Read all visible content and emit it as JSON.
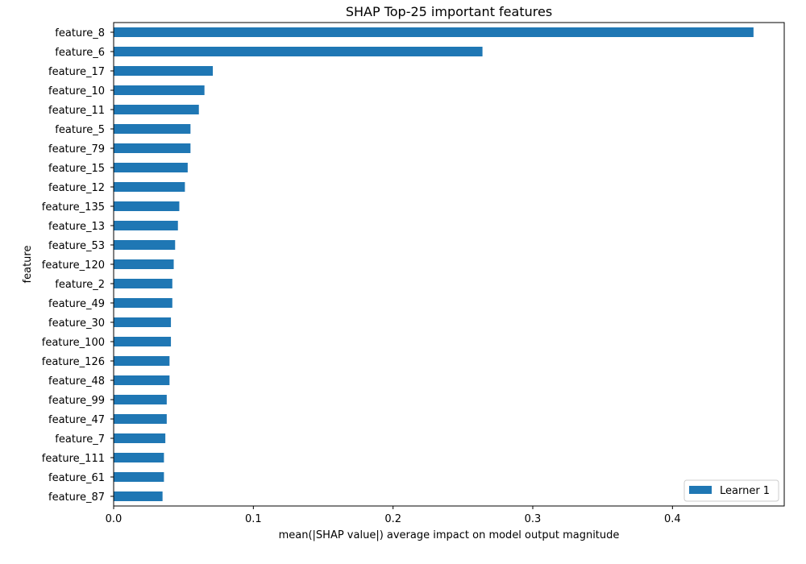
{
  "chart_data": {
    "type": "bar",
    "orientation": "horizontal",
    "title": "SHAP Top-25 important features",
    "xlabel": "mean(|SHAP value|) average impact on model output magnitude",
    "ylabel": "feature",
    "xlim": [
      0,
      0.48
    ],
    "xticks": [
      0.0,
      0.1,
      0.2,
      0.3,
      0.4
    ],
    "xtick_labels": [
      "0.0",
      "0.1",
      "0.2",
      "0.3",
      "0.4"
    ],
    "grid": false,
    "legend_position": "bottom-right",
    "categories": [
      "feature_8",
      "feature_6",
      "feature_17",
      "feature_10",
      "feature_11",
      "feature_5",
      "feature_79",
      "feature_15",
      "feature_12",
      "feature_135",
      "feature_13",
      "feature_53",
      "feature_120",
      "feature_2",
      "feature_49",
      "feature_30",
      "feature_100",
      "feature_126",
      "feature_48",
      "feature_99",
      "feature_47",
      "feature_7",
      "feature_111",
      "feature_61",
      "feature_87"
    ],
    "series": [
      {
        "name": "Learner 1",
        "color": "#1f77b4",
        "values": [
          0.458,
          0.264,
          0.071,
          0.065,
          0.061,
          0.055,
          0.055,
          0.053,
          0.051,
          0.047,
          0.046,
          0.044,
          0.043,
          0.042,
          0.042,
          0.041,
          0.041,
          0.04,
          0.04,
          0.038,
          0.038,
          0.037,
          0.036,
          0.036,
          0.035
        ]
      }
    ]
  }
}
